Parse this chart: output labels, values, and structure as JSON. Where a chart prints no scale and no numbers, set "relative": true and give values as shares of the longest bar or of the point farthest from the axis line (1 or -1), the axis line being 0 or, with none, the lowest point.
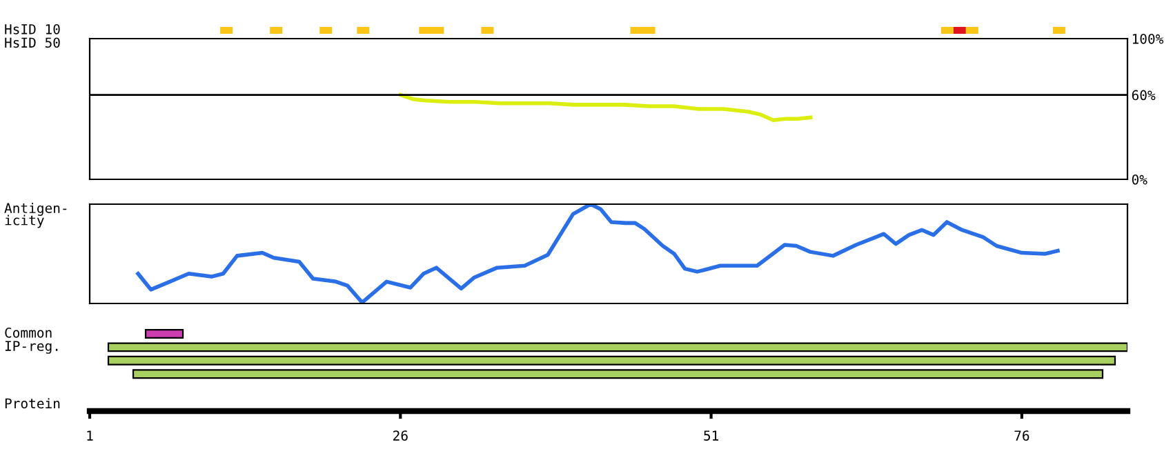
{
  "chart_data": [
    {
      "type": "bar",
      "orientation": "horizontal",
      "categories": [
        "HsID 10"
      ],
      "xlim": [
        1,
        84.5
      ],
      "tick_labels": false,
      "series": [
        {
          "color": "#f9c516",
          "base": [
            11.5
          ],
          "values": [
            1
          ]
        },
        {
          "color": "#f9c516",
          "base": [
            15.5
          ],
          "values": [
            1
          ]
        },
        {
          "color": "#f9c516",
          "base": [
            19.5
          ],
          "values": [
            1
          ]
        },
        {
          "color": "#f9c516",
          "base": [
            22.5
          ],
          "values": [
            1
          ]
        },
        {
          "color": "#f9c516",
          "base": [
            27.5
          ],
          "values": [
            2
          ]
        },
        {
          "color": "#f9c516",
          "base": [
            32.5
          ],
          "values": [
            1
          ]
        },
        {
          "color": "#f9c516",
          "base": [
            44.5
          ],
          "values": [
            2
          ]
        },
        {
          "color": "#f9c516",
          "base": [
            69.5
          ],
          "values": [
            1
          ]
        },
        {
          "color": "#e0141e",
          "base": [
            70.5
          ],
          "values": [
            1
          ]
        },
        {
          "color": "#f9c516",
          "base": [
            71.5
          ],
          "values": [
            1
          ]
        },
        {
          "color": "#f9c516",
          "base": [
            78.5
          ],
          "values": [
            1
          ]
        }
      ]
    },
    {
      "type": "line",
      "ylabel": "HsID 50",
      "xlim": [
        1,
        84.5
      ],
      "ylim": [
        0,
        100
      ],
      "yticks": [
        {
          "value": 0,
          "label": "0%"
        },
        {
          "value": 60,
          "label": "60%"
        },
        {
          "value": 100,
          "label": "100%"
        }
      ],
      "tick_labels": "y",
      "ref_lines": [
        {
          "axis": "y",
          "value": 60,
          "color": "#000000"
        }
      ],
      "series": [
        {
          "color": "#dcee10",
          "x": [
            26,
            27,
            28,
            30,
            32,
            34,
            36,
            38,
            40,
            42,
            44,
            46,
            48,
            50,
            52,
            54,
            55,
            56,
            57,
            58,
            59
          ],
          "values": [
            60,
            57,
            56,
            55,
            55,
            54,
            54,
            54,
            53,
            53,
            53,
            52,
            52,
            50,
            50,
            48,
            46,
            42,
            43,
            43,
            44
          ]
        }
      ]
    },
    {
      "type": "line",
      "ylabel": "Antigen-\nicity",
      "xlim": [
        1,
        84.5
      ],
      "relative": true,
      "tick_labels": false,
      "series": [
        {
          "color": "#2a6fe6",
          "x": [
            4.89,
            5.92,
            8.97,
            10.81,
            11.74,
            12.86,
            14.89,
            15.81,
            17.86,
            18.97,
            20.81,
            21.74,
            22.92,
            24.89,
            26.81,
            27.86,
            28.89,
            30.89,
            31.92,
            33.78,
            36,
            37.86,
            39.89,
            41.3,
            42.11,
            42.97,
            44.14,
            44.89,
            45.63,
            47.11,
            48.03,
            48.89,
            49.89,
            51.74,
            54.7,
            56.92,
            57.86,
            58.97,
            60.81,
            62.67,
            64.89,
            65.86,
            66.92,
            67.97,
            68.89,
            69.97,
            71.19,
            72.86,
            73.97,
            76,
            77.86,
            78.89
          ],
          "values": [
            0.3,
            0.14,
            0.3,
            0.27,
            0.3,
            0.48,
            0.51,
            0.46,
            0.42,
            0.25,
            0.22,
            0.18,
            0.01,
            0.22,
            0.16,
            0.3,
            0.36,
            0.15,
            0.26,
            0.36,
            0.38,
            0.49,
            0.9,
            1,
            0.95,
            0.82,
            0.81,
            0.81,
            0.75,
            0.58,
            0.5,
            0.35,
            0.32,
            0.38,
            0.38,
            0.59,
            0.58,
            0.52,
            0.48,
            0.59,
            0.7,
            0.6,
            0.69,
            0.74,
            0.69,
            0.82,
            0.74,
            0.67,
            0.58,
            0.51,
            0.5,
            0.53
          ]
        }
      ]
    },
    {
      "type": "bar",
      "orientation": "horizontal",
      "categories": [
        "Common",
        "IP-reg.",
        null,
        null
      ],
      "xlabel": "Protein",
      "xlim": [
        1,
        84.5
      ],
      "xticks": [
        1,
        26,
        51,
        76
      ],
      "tick_labels": "x",
      "base": [
        5.5,
        2.5,
        2.5,
        4.5
      ],
      "values": [
        3,
        82,
        81,
        78
      ],
      "colors": [
        "#cc3eb0",
        "#a8d060",
        "#a8d060",
        "#a8d060"
      ]
    }
  ]
}
